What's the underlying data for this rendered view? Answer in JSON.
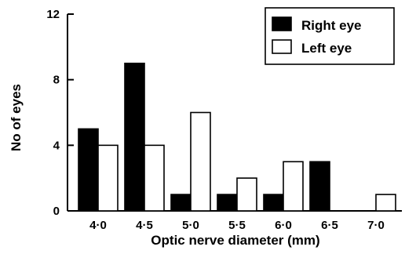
{
  "chart_data": {
    "type": "bar",
    "categories": [
      "4·0",
      "4·5",
      "5·0",
      "5·5",
      "6·0",
      "6·5",
      "7·0"
    ],
    "series": [
      {
        "name": "Right eye",
        "values": [
          5,
          9,
          1,
          1,
          1,
          3,
          0
        ],
        "color": "#000000"
      },
      {
        "name": "Left eye",
        "values": [
          4,
          4,
          6,
          2,
          3,
          0,
          1
        ],
        "color": "#ffffff"
      }
    ],
    "xlabel": "Optic nerve diameter (mm)",
    "ylabel": "No of eyes",
    "ylim": [
      0,
      12
    ],
    "yticks": [
      0,
      4,
      8,
      12
    ],
    "grid": false,
    "legend_position": "top-right"
  }
}
